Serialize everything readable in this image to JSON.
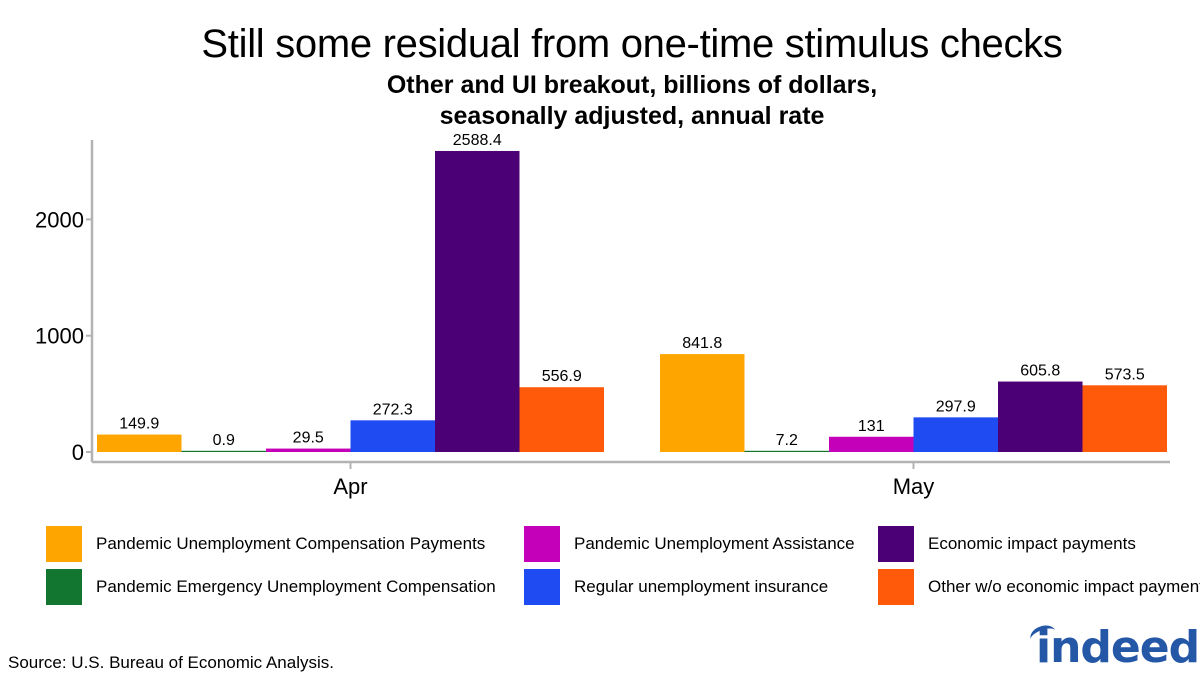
{
  "title": "Still some residual from one-time stimulus checks",
  "subtitle_lines": [
    "Other and UI breakout, billions of dollars,",
    "seasonally adjusted, annual rate"
  ],
  "source": "Source: U.S. Bureau of Economic Analysis.",
  "logo_text": "indeed",
  "colors": {
    "pandemic_unemployment_compensation": "#FFA500",
    "pandemic_emergency_unemployment_compensation": "#127530",
    "pandemic_unemployment_assistance": "#C400B8",
    "regular_unemployment_insurance": "#1F4BF2",
    "economic_impact_payments": "#4B0075",
    "other_wo_economic_impact_payments": "#FF5A0A",
    "axis": "#B3B3B3",
    "logo": "#2557a7"
  },
  "chart_data": {
    "type": "bar",
    "categories": [
      "Apr",
      "May"
    ],
    "ylim": [
      0,
      2700
    ],
    "yticks": [
      0,
      1000,
      2000
    ],
    "series": [
      {
        "name": "Pandemic Unemployment Compensation Payments",
        "values": [
          149.9,
          841.8
        ],
        "labels": [
          "149.9",
          "841.8"
        ],
        "color": "#FFA500"
      },
      {
        "name": "Pandemic Emergency Unemployment Compensation",
        "values": [
          0.9,
          7.2
        ],
        "labels": [
          "0.9",
          "7.2"
        ],
        "color": "#127530"
      },
      {
        "name": "Pandemic Unemployment Assistance",
        "values": [
          29.5,
          131
        ],
        "labels": [
          "29.5",
          "131"
        ],
        "color": "#C400B8"
      },
      {
        "name": "Regular unemployment insurance",
        "values": [
          272.3,
          297.9
        ],
        "labels": [
          "272.3",
          "297.9"
        ],
        "color": "#1F4BF2"
      },
      {
        "name": "Economic impact payments",
        "values": [
          2588.4,
          605.8
        ],
        "labels": [
          "2588.4",
          "605.8"
        ],
        "color": "#4B0075"
      },
      {
        "name": "Other w/o economic impact payments",
        "values": [
          556.9,
          573.5
        ],
        "labels": [
          "556.9",
          "573.5"
        ],
        "color": "#FF5A0A"
      }
    ],
    "legend": {
      "placement": "bottom",
      "order": [
        0,
        2,
        4,
        1,
        3,
        5
      ],
      "entries": [
        "Pandemic Unemployment Compensation Payments",
        "Pandemic Unemployment Assistance",
        "Economic impact payments",
        "Pandemic Emergency Unemployment Compensation",
        "Regular unemployment insurance",
        "Other w/o economic impact payments"
      ]
    },
    "grid": false
  }
}
